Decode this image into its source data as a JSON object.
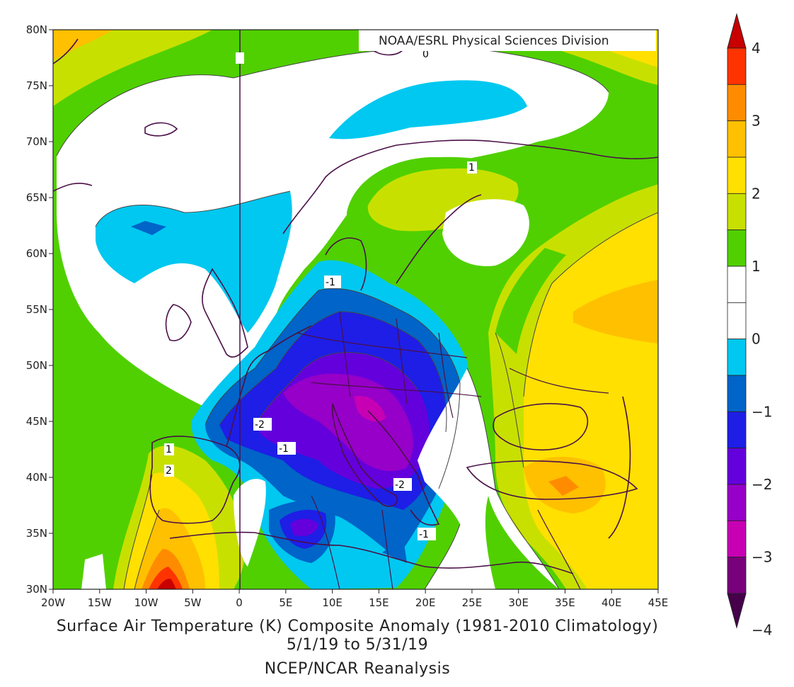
{
  "credit": "NOAA/ESRL Physical Sciences Division",
  "title": "Surface Air Temperature (K) Composite Anomaly (1981-2010 Climatology)",
  "dates": "5/1/19  to 5/31/19",
  "source": "NCEP/NCAR Reanalysis",
  "lat_labels": [
    "80N",
    "75N",
    "70N",
    "65N",
    "60N",
    "55N",
    "50N",
    "45N",
    "40N",
    "35N",
    "30N"
  ],
  "lon_labels": [
    "20W",
    "15W",
    "10W",
    "5W",
    "0",
    "5E",
    "10E",
    "15E",
    "20E",
    "25E",
    "30E",
    "35E",
    "40E",
    "45E"
  ],
  "colorbar": {
    "labels": [
      "4",
      "3",
      "2",
      "1",
      "0",
      "-1",
      "-2",
      "-3",
      "-4"
    ],
    "colors": [
      "#c80000",
      "#ff3300",
      "#ff8c00",
      "#ffc000",
      "#ffe000",
      "#c8e000",
      "#50d000",
      "#ffffff",
      "#ffffff",
      "#00c8f0",
      "#0064c8",
      "#1e1ee6",
      "#6400dc",
      "#9600c8",
      "#c800b4",
      "#78007a",
      "#46004b"
    ]
  },
  "contour_labels": [
    "1",
    "-1",
    "-2",
    "-1",
    "-2",
    "-1",
    "1",
    "2",
    "0"
  ]
}
